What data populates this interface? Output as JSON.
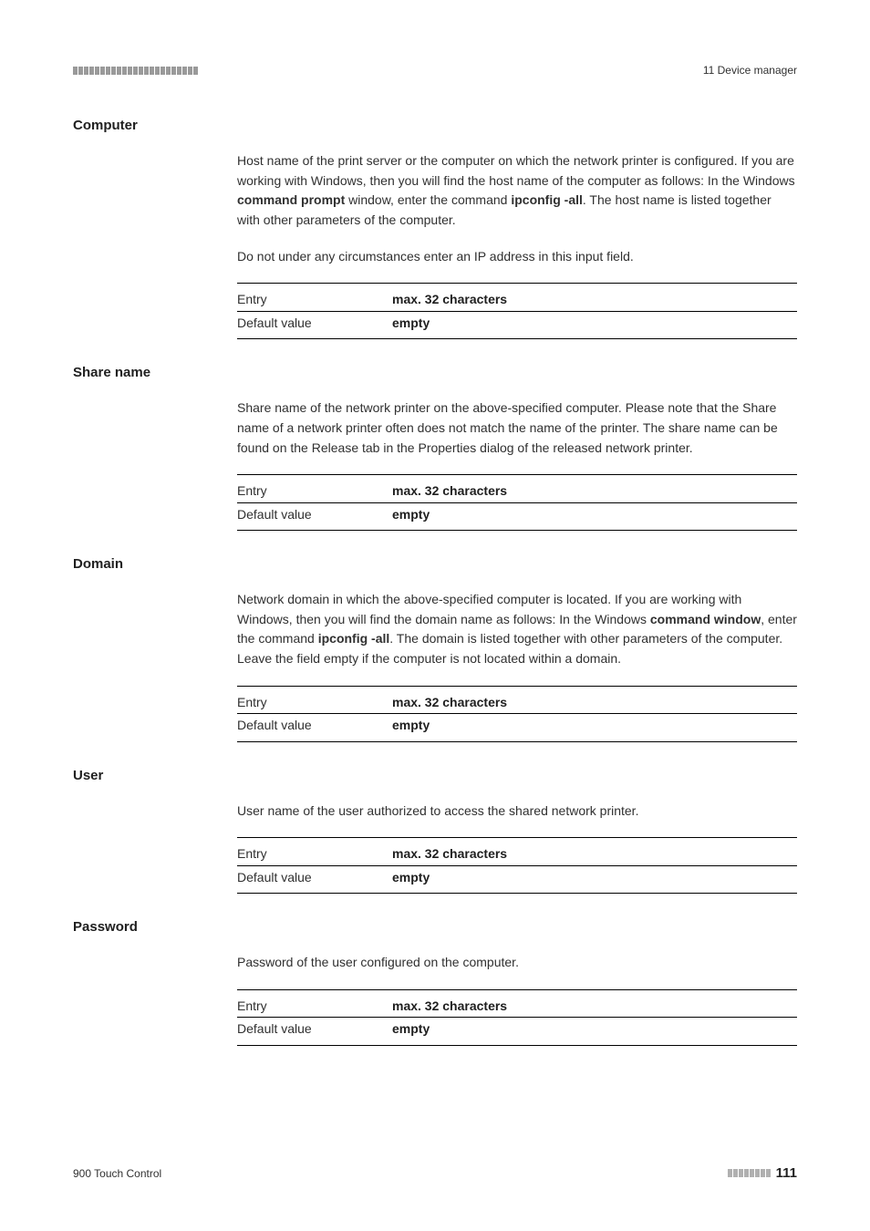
{
  "header": {
    "chapter": "11 Device manager"
  },
  "sections": [
    {
      "title": "Computer",
      "paragraphs": [
        "Host name of the print server or the computer on which the network printer is configured. If you are working with Windows, then you will find the host name of the computer as follows: In the Windows <b>command prompt</b> window, enter the command <b>ipconfig -all</b>. The host name is listed together with other parameters of the computer.",
        "Do not under any circumstances enter an IP address in this input field."
      ],
      "entry": "max. 32 characters",
      "default": "empty"
    },
    {
      "title": "Share name",
      "paragraphs": [
        "Share name of the network printer on the above-specified computer. Please note that the Share name of a network printer often does not match the name of the printer. The share name can be found on the Release tab in the Properties dialog of the released network printer."
      ],
      "entry": "max. 32 characters",
      "default": "empty"
    },
    {
      "title": "Domain",
      "paragraphs": [
        "Network domain in which the above-specified computer is located. If you are working with Windows, then you will find the domain name as follows: In the Windows <b>command window</b>, enter the command <b>ipconfig -all</b>. The domain is listed together with other parameters of the computer. Leave the field empty if the computer is not located within a domain."
      ],
      "entry": "max. 32 characters",
      "default": "empty"
    },
    {
      "title": "User",
      "paragraphs": [
        "User name of the user authorized to access the shared network printer."
      ],
      "entry": "max. 32 characters",
      "default": "empty"
    },
    {
      "title": "Password",
      "paragraphs": [
        "Password of the user configured on the computer."
      ],
      "entry": "max. 32 characters",
      "default": "empty"
    }
  ],
  "entryLabel": "Entry",
  "defaultLabel": "Default value",
  "footer": {
    "product": "900 Touch Control",
    "page": "111"
  }
}
